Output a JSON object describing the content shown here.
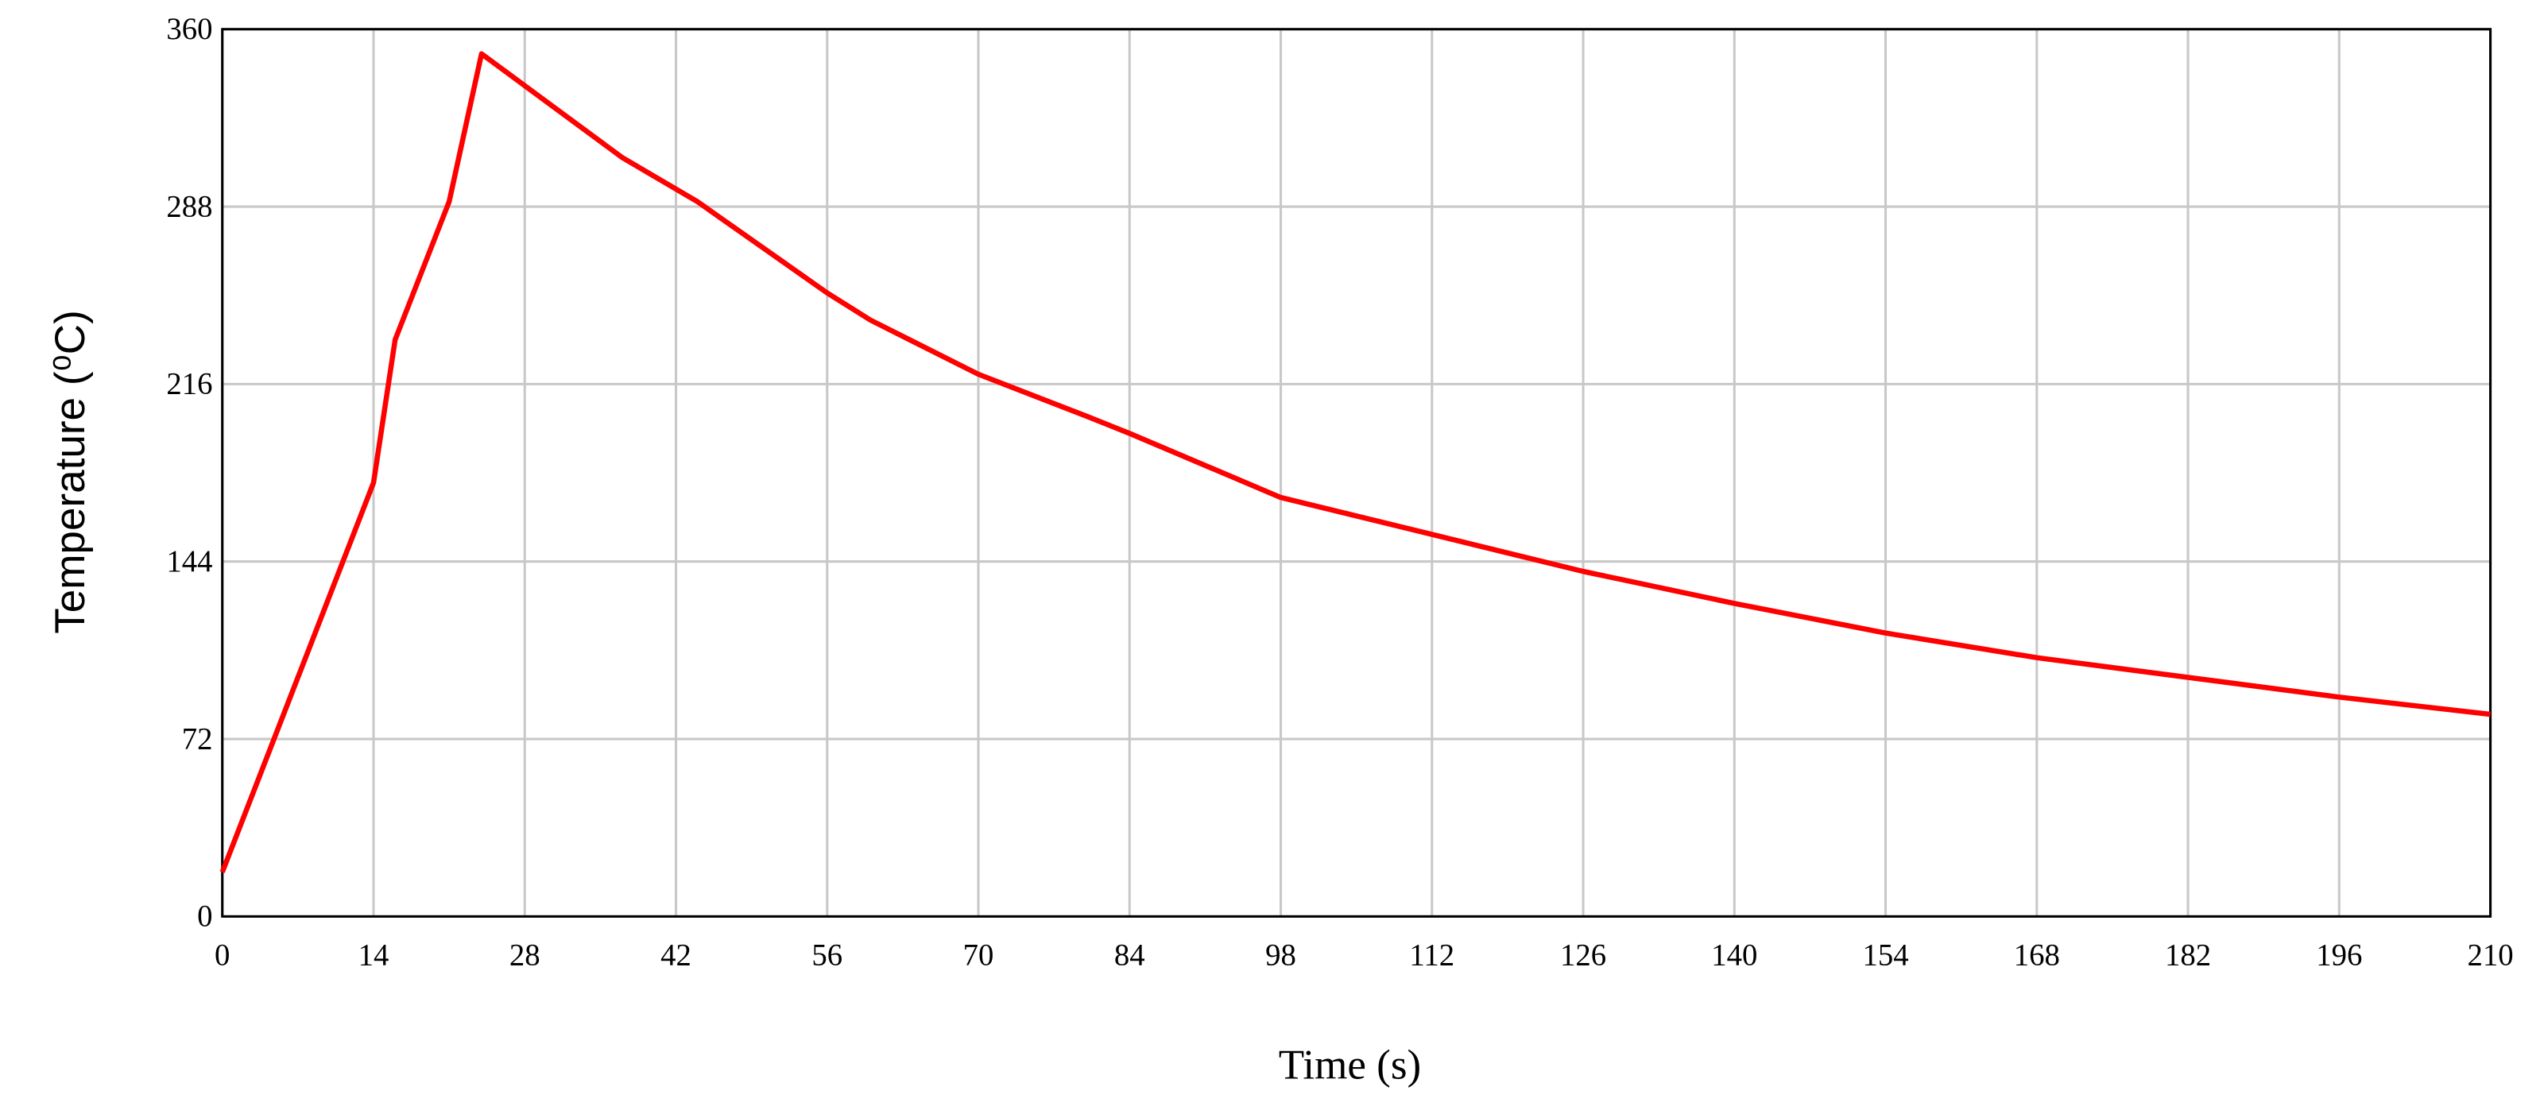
{
  "chart_data": {
    "type": "line",
    "x_label": "Time (s)",
    "y_label": "Temperature (⁰C)",
    "x": [
      0,
      14,
      16,
      21,
      24,
      37,
      44,
      56,
      60,
      70,
      80,
      84,
      98,
      112,
      126,
      140,
      154,
      168,
      182,
      196,
      210
    ],
    "series": [
      {
        "name": "Temperature",
        "color": "#ff0000",
        "values": [
          18,
          176,
          234,
          290,
          350,
          308,
          290,
          253,
          242,
          220,
          203,
          196,
          170,
          155,
          140,
          127,
          115,
          105,
          97,
          89,
          82
        ]
      }
    ],
    "xlim": [
      0,
      210
    ],
    "xticks": [
      0,
      14,
      28,
      42,
      56,
      70,
      84,
      98,
      112,
      126,
      140,
      154,
      168,
      182,
      196,
      210
    ],
    "ylim": [
      0,
      360
    ],
    "yticks": [
      0,
      72,
      144,
      216,
      288,
      360
    ],
    "grid": true
  }
}
